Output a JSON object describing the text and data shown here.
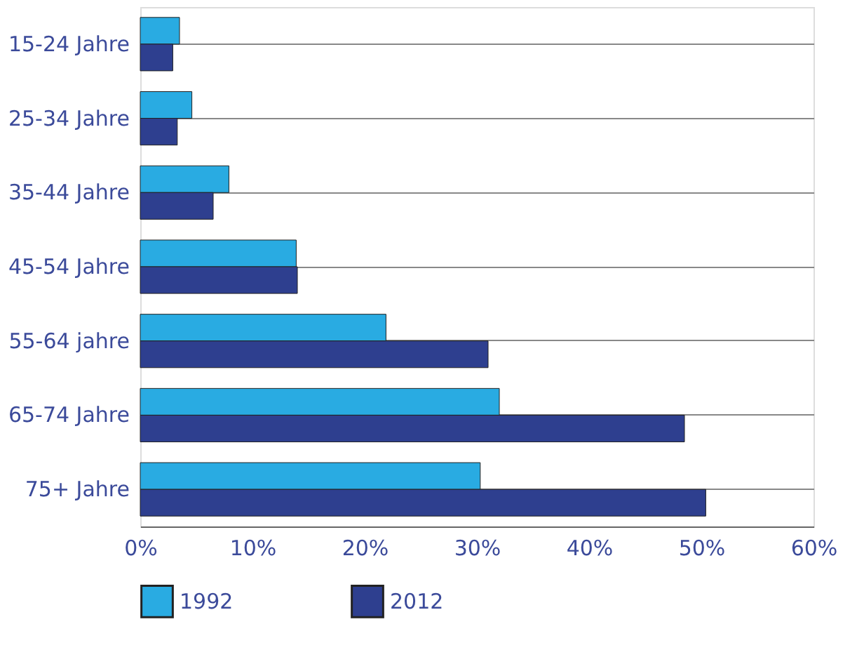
{
  "chart_data": {
    "type": "bar",
    "orientation": "horizontal",
    "categories": [
      "15-24 Jahre",
      "25-34 Jahre",
      "35-44 Jahre",
      "45-54 Jahre",
      "55-64 jahre",
      "65-74 Jahre",
      "75+ Jahre"
    ],
    "series": [
      {
        "name": "1992",
        "color": "#29abe2",
        "values": [
          3.5,
          4.6,
          7.9,
          13.9,
          21.9,
          32.0,
          30.3
        ]
      },
      {
        "name": "2012",
        "color": "#2e3f8f",
        "values": [
          2.9,
          3.3,
          6.5,
          14.0,
          31.0,
          48.5,
          50.4
        ]
      }
    ],
    "xlim": [
      0,
      60
    ],
    "xticks": [
      {
        "value": 0,
        "label": "0%"
      },
      {
        "value": 10,
        "label": "10%"
      },
      {
        "value": 20,
        "label": "20%"
      },
      {
        "value": 30,
        "label": "30%"
      },
      {
        "value": 40,
        "label": "40%"
      },
      {
        "value": 50,
        "label": "50%"
      },
      {
        "value": 60,
        "label": "60%"
      }
    ],
    "grid": "y",
    "legend": "bottom"
  }
}
